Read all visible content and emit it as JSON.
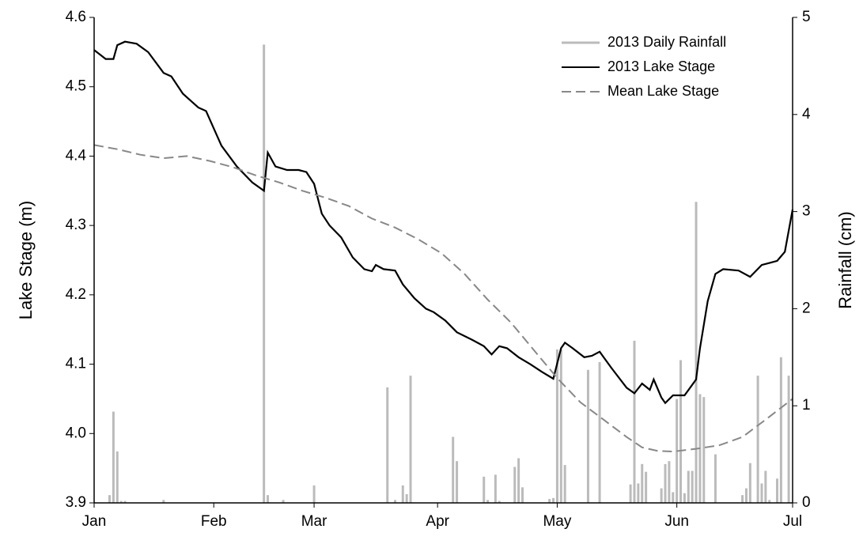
{
  "chart_data": {
    "type": "line",
    "xlabel": null,
    "ylabel": "Lake Stage (m)",
    "y2label": "Rainfall (cm)",
    "xlim": [
      0,
      181
    ],
    "xticks": [
      {
        "value": 0,
        "label": "Jan"
      },
      {
        "value": 31,
        "label": "Feb"
      },
      {
        "value": 57,
        "label": "Mar"
      },
      {
        "value": 89,
        "label": "Apr"
      },
      {
        "value": 120,
        "label": "May"
      },
      {
        "value": 151,
        "label": "Jun"
      },
      {
        "value": 181,
        "label": "Jul"
      }
    ],
    "ylim": [
      3.9,
      4.6
    ],
    "yticks": [
      3.9,
      {
        "value": 4,
        "label": "4.0"
      },
      4.1,
      4.2,
      4.3,
      4.4,
      4.5,
      4.6
    ],
    "y2lim": [
      0,
      5
    ],
    "y2ticks": [
      0,
      1,
      2,
      3,
      4,
      5
    ],
    "legend": "upper right",
    "series": [
      {
        "name": "2013 Daily Rainfall",
        "type": "bar",
        "axis": "y2",
        "color": "#bbbbbb",
        "x": [
          4,
          5,
          6,
          7,
          8,
          18,
          44,
          45,
          49,
          57,
          76,
          78,
          80,
          81,
          82,
          93,
          94,
          101,
          102,
          104,
          105,
          109,
          110,
          111,
          118,
          119,
          120,
          121,
          122,
          128,
          131,
          139,
          140,
          141,
          142,
          143,
          147,
          148,
          149,
          150,
          151,
          152,
          153,
          154,
          155,
          156,
          157,
          158,
          161,
          168,
          169,
          170,
          172,
          173,
          174,
          175,
          177,
          178,
          180
        ],
        "values": [
          0.08,
          0.94,
          0.53,
          0.02,
          0.02,
          0.03,
          4.72,
          0.08,
          0.03,
          0.18,
          1.19,
          0.03,
          0.18,
          0.09,
          1.31,
          0.68,
          0.43,
          0.27,
          0.03,
          0.29,
          0.02,
          0.37,
          0.46,
          0.16,
          0.04,
          0.05,
          1.58,
          1.58,
          0.39,
          1.37,
          1.45,
          0.19,
          1.67,
          0.2,
          0.4,
          0.32,
          0.15,
          0.4,
          0.43,
          0.11,
          1.07,
          1.47,
          0.1,
          0.33,
          0.33,
          3.1,
          1.12,
          1.09,
          0.5,
          0.08,
          0.15,
          0.41,
          1.31,
          0.2,
          0.33,
          0.03,
          0.25,
          1.5,
          1.31
        ]
      },
      {
        "name": "2013 Lake Stage",
        "type": "line",
        "color": "#000000",
        "dash": false,
        "x": [
          0,
          3,
          5,
          6,
          8,
          11,
          14,
          18,
          20,
          23,
          27,
          29,
          31,
          33,
          37,
          41,
          44,
          45,
          47,
          50,
          53,
          55,
          57,
          59,
          61,
          64,
          67,
          70,
          72,
          73,
          75,
          78,
          80,
          83,
          86,
          88,
          91,
          94,
          98,
          101,
          103,
          105,
          107,
          110,
          113,
          116,
          119,
          121,
          122,
          124,
          127,
          129,
          131,
          134,
          138,
          140,
          142,
          144,
          145,
          147,
          148,
          150,
          153,
          156,
          157,
          159,
          161,
          163,
          167,
          170,
          173,
          175,
          177,
          179,
          181
        ],
        "values": [
          4.553,
          4.54,
          4.54,
          4.56,
          4.565,
          4.562,
          4.55,
          4.52,
          4.515,
          4.49,
          4.47,
          4.465,
          4.44,
          4.415,
          4.385,
          4.362,
          4.35,
          4.405,
          4.385,
          4.38,
          4.38,
          4.377,
          4.36,
          4.317,
          4.3,
          4.283,
          4.254,
          4.237,
          4.234,
          4.243,
          4.237,
          4.235,
          4.215,
          4.195,
          4.18,
          4.175,
          4.163,
          4.146,
          4.135,
          4.126,
          4.114,
          4.126,
          4.123,
          4.11,
          4.1,
          4.089,
          4.079,
          4.123,
          4.131,
          4.123,
          4.11,
          4.112,
          4.118,
          4.095,
          4.066,
          4.058,
          4.072,
          4.063,
          4.078,
          4.052,
          4.044,
          4.055,
          4.055,
          4.078,
          4.123,
          4.191,
          4.23,
          4.237,
          4.235,
          4.226,
          4.243,
          4.246,
          4.249,
          4.262,
          4.323
        ]
      },
      {
        "name": "Mean Lake Stage",
        "type": "line",
        "color": "#888888",
        "dash": true,
        "x": [
          0,
          6,
          12,
          18,
          24,
          30,
          36,
          42,
          48,
          54,
          60,
          66,
          72,
          78,
          84,
          90,
          96,
          102,
          108,
          114,
          120,
          126,
          132,
          138,
          142,
          146,
          150,
          156,
          162,
          168,
          174,
          181
        ],
        "values": [
          4.416,
          4.41,
          4.402,
          4.397,
          4.4,
          4.393,
          4.384,
          4.372,
          4.362,
          4.35,
          4.34,
          4.328,
          4.31,
          4.297,
          4.28,
          4.26,
          4.23,
          4.193,
          4.16,
          4.12,
          4.08,
          4.045,
          4.02,
          3.995,
          3.98,
          3.975,
          3.974,
          3.978,
          3.983,
          3.995,
          4.02,
          4.05
        ]
      }
    ]
  }
}
